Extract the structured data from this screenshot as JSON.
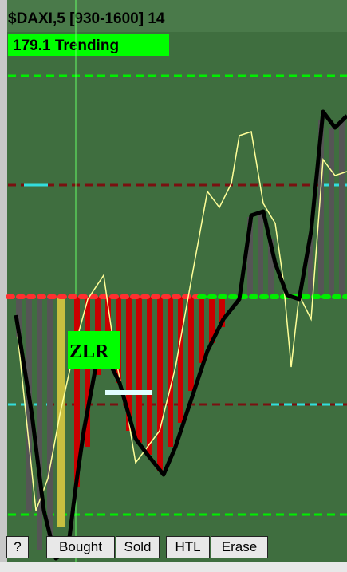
{
  "header": {
    "title": "$DAXI,5 [930-1600] 14",
    "status": "179.1 Trending"
  },
  "chart": {
    "pattern_label": "ZLR"
  },
  "toolbar": {
    "buttons": [
      "?",
      "Bought",
      "Sold",
      "HTL",
      "Erase"
    ]
  }
}
